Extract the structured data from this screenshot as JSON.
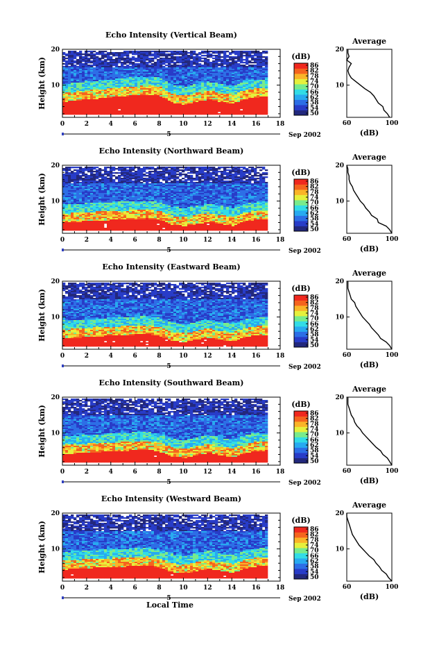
{
  "figure": {
    "xlabel": "Local Time",
    "date_label": "Sep 2002",
    "date_marker": "5"
  },
  "chart_data": [
    {
      "type": "heatmap",
      "title": "Echo Intensity (Vertical Beam)",
      "xlabel": "",
      "ylabel": "Height (km)",
      "x_ticks": [
        0,
        2,
        4,
        6,
        8,
        10,
        12,
        14,
        16,
        18
      ],
      "y_ticks": [
        10,
        20
      ],
      "xlim": [
        0,
        18
      ],
      "ylim": [
        1,
        20
      ],
      "data_end_x": 16.9,
      "colorbar": {
        "label": "(dB)",
        "ticks": [
          50,
          54,
          58,
          62,
          66,
          70,
          74,
          78,
          82,
          86
        ]
      },
      "layer_boundary_km": [
        [
          0,
          6.5
        ],
        [
          2,
          7.2
        ],
        [
          4,
          7.8
        ],
        [
          6,
          8.4
        ],
        [
          7,
          8.6
        ],
        [
          8,
          8.2
        ],
        [
          9,
          6.2
        ],
        [
          10,
          5.8
        ],
        [
          11,
          6.5
        ],
        [
          12,
          7.2
        ],
        [
          13,
          6.4
        ],
        [
          14,
          6.0
        ],
        [
          15,
          7.3
        ],
        [
          16,
          7.8
        ],
        [
          16.9,
          7.9
        ]
      ],
      "average_profile": {
        "title": "Average",
        "xlabel": "(dB)",
        "x_ticks": [
          60,
          100
        ],
        "y_ticks": [
          10,
          20
        ],
        "xlim": [
          60,
          100
        ],
        "ylim": [
          1,
          20
        ],
        "values_db": [
          [
            1,
            98
          ],
          [
            2,
            96
          ],
          [
            3,
            93
          ],
          [
            4,
            92
          ],
          [
            5,
            88
          ],
          [
            6,
            86
          ],
          [
            7,
            84
          ],
          [
            8,
            81
          ],
          [
            9,
            76
          ],
          [
            10,
            72
          ],
          [
            11,
            68
          ],
          [
            12,
            64
          ],
          [
            13,
            62
          ],
          [
            14,
            61
          ],
          [
            15,
            62
          ],
          [
            16,
            64
          ],
          [
            17,
            60
          ],
          [
            18,
            62
          ],
          [
            19,
            61
          ],
          [
            20,
            61
          ]
        ]
      }
    },
    {
      "type": "heatmap",
      "title": "Echo Intensity (Northward Beam)",
      "xlabel": "",
      "ylabel": "Height (km)",
      "x_ticks": [
        0,
        2,
        4,
        6,
        8,
        10,
        12,
        14,
        16,
        18
      ],
      "y_ticks": [
        10,
        20
      ],
      "xlim": [
        0,
        18
      ],
      "ylim": [
        1,
        20
      ],
      "data_end_x": 16.9,
      "colorbar": {
        "label": "(dB)",
        "ticks": [
          50,
          54,
          58,
          62,
          66,
          70,
          74,
          78,
          82,
          86
        ]
      },
      "layer_boundary_km": [
        [
          0,
          5.2
        ],
        [
          2,
          5.6
        ],
        [
          4,
          5.9
        ],
        [
          6,
          6.2
        ],
        [
          7,
          6.3
        ],
        [
          8,
          5.8
        ],
        [
          9,
          4.6
        ],
        [
          10,
          4.2
        ],
        [
          11,
          4.8
        ],
        [
          12,
          5.4
        ],
        [
          13,
          4.8
        ],
        [
          14,
          4.3
        ],
        [
          15,
          5.5
        ],
        [
          16,
          6.0
        ],
        [
          16.9,
          6.1
        ]
      ],
      "average_profile": {
        "title": "Average",
        "xlabel": "(dB)",
        "x_ticks": [
          60,
          100
        ],
        "y_ticks": [
          10,
          20
        ],
        "xlim": [
          60,
          100
        ],
        "ylim": [
          1,
          20
        ],
        "values_db": [
          [
            1,
            100
          ],
          [
            2,
            98
          ],
          [
            3,
            95
          ],
          [
            4,
            88
          ],
          [
            5,
            87
          ],
          [
            6,
            82
          ],
          [
            7,
            80
          ],
          [
            8,
            77
          ],
          [
            9,
            75
          ],
          [
            10,
            72
          ],
          [
            11,
            70
          ],
          [
            12,
            68
          ],
          [
            13,
            66
          ],
          [
            14,
            65
          ],
          [
            15,
            63
          ],
          [
            16,
            62
          ],
          [
            17,
            62
          ],
          [
            18,
            61
          ],
          [
            19,
            61
          ],
          [
            20,
            60
          ]
        ]
      }
    },
    {
      "type": "heatmap",
      "title": "Echo Intensity (Eastward Beam)",
      "xlabel": "",
      "ylabel": "Height (km)",
      "x_ticks": [
        0,
        2,
        4,
        6,
        8,
        10,
        12,
        14,
        16,
        18
      ],
      "y_ticks": [
        10,
        20
      ],
      "xlim": [
        0,
        18
      ],
      "ylim": [
        1,
        20
      ],
      "data_end_x": 16.9,
      "colorbar": {
        "label": "(dB)",
        "ticks": [
          50,
          54,
          58,
          62,
          66,
          70,
          74,
          78,
          82,
          86
        ]
      },
      "layer_boundary_km": [
        [
          0,
          5.2
        ],
        [
          2,
          5.6
        ],
        [
          4,
          6.0
        ],
        [
          6,
          6.3
        ],
        [
          7,
          6.4
        ],
        [
          8,
          5.8
        ],
        [
          9,
          4.5
        ],
        [
          10,
          4.1
        ],
        [
          11,
          4.9
        ],
        [
          12,
          5.5
        ],
        [
          13,
          4.8
        ],
        [
          14,
          4.4
        ],
        [
          15,
          5.6
        ],
        [
          16,
          6.1
        ],
        [
          16.9,
          6.2
        ]
      ],
      "average_profile": {
        "title": "Average",
        "xlabel": "(dB)",
        "x_ticks": [
          60,
          100
        ],
        "y_ticks": [
          10,
          20
        ],
        "xlim": [
          60,
          100
        ],
        "ylim": [
          1,
          20
        ],
        "values_db": [
          [
            1,
            100
          ],
          [
            2,
            98
          ],
          [
            3,
            95
          ],
          [
            4,
            90
          ],
          [
            5,
            88
          ],
          [
            6,
            85
          ],
          [
            7,
            82
          ],
          [
            8,
            80
          ],
          [
            9,
            77
          ],
          [
            10,
            74
          ],
          [
            11,
            72
          ],
          [
            12,
            70
          ],
          [
            13,
            68
          ],
          [
            14,
            67
          ],
          [
            15,
            64
          ],
          [
            16,
            63
          ],
          [
            17,
            62
          ],
          [
            18,
            61
          ],
          [
            19,
            61
          ],
          [
            20,
            61
          ]
        ]
      }
    },
    {
      "type": "heatmap",
      "title": "Echo Intensity (Southward Beam)",
      "xlabel": "",
      "ylabel": "Height (km)",
      "x_ticks": [
        0,
        2,
        4,
        6,
        8,
        10,
        12,
        14,
        16,
        18
      ],
      "y_ticks": [
        10,
        20
      ],
      "xlim": [
        0,
        18
      ],
      "ylim": [
        1,
        20
      ],
      "data_end_x": 16.9,
      "colorbar": {
        "label": "(dB)",
        "ticks": [
          50,
          54,
          58,
          62,
          66,
          70,
          74,
          78,
          82,
          86
        ]
      },
      "layer_boundary_km": [
        [
          0,
          5.3
        ],
        [
          2,
          5.7
        ],
        [
          4,
          6.0
        ],
        [
          6,
          6.4
        ],
        [
          7,
          6.5
        ],
        [
          8,
          5.9
        ],
        [
          9,
          4.6
        ],
        [
          10,
          4.2
        ],
        [
          11,
          5.0
        ],
        [
          12,
          5.6
        ],
        [
          13,
          4.9
        ],
        [
          14,
          4.4
        ],
        [
          15,
          5.6
        ],
        [
          16,
          6.2
        ],
        [
          16.9,
          6.3
        ]
      ],
      "average_profile": {
        "title": "Average",
        "xlabel": "(dB)",
        "x_ticks": [
          60,
          100
        ],
        "y_ticks": [
          10,
          20
        ],
        "xlim": [
          60,
          100
        ],
        "ylim": [
          1,
          20
        ],
        "values_db": [
          [
            1,
            100
          ],
          [
            2,
            98
          ],
          [
            3,
            96
          ],
          [
            4,
            92
          ],
          [
            5,
            90
          ],
          [
            6,
            86
          ],
          [
            7,
            83
          ],
          [
            8,
            80
          ],
          [
            9,
            77
          ],
          [
            10,
            74
          ],
          [
            11,
            72
          ],
          [
            12,
            69
          ],
          [
            13,
            67
          ],
          [
            14,
            66
          ],
          [
            15,
            64
          ],
          [
            16,
            63
          ],
          [
            17,
            62
          ],
          [
            18,
            61
          ],
          [
            19,
            61
          ],
          [
            20,
            61
          ]
        ]
      }
    },
    {
      "type": "heatmap",
      "title": "Echo Intensity (Westward Beam)",
      "xlabel": "Local Time",
      "ylabel": "Height (km)",
      "x_ticks": [
        0,
        2,
        4,
        6,
        8,
        10,
        12,
        14,
        16,
        18
      ],
      "y_ticks": [
        10,
        20
      ],
      "xlim": [
        0,
        18
      ],
      "ylim": [
        1,
        20
      ],
      "data_end_x": 16.9,
      "colorbar": {
        "label": "(dB)",
        "ticks": [
          50,
          54,
          58,
          62,
          66,
          70,
          74,
          78,
          82,
          86
        ]
      },
      "layer_boundary_km": [
        [
          0,
          5.4
        ],
        [
          2,
          5.8
        ],
        [
          4,
          6.1
        ],
        [
          6,
          6.4
        ],
        [
          7,
          6.5
        ],
        [
          8,
          5.9
        ],
        [
          9,
          4.7
        ],
        [
          10,
          4.3
        ],
        [
          11,
          5.0
        ],
        [
          12,
          5.7
        ],
        [
          13,
          5.0
        ],
        [
          14,
          4.5
        ],
        [
          15,
          5.7
        ],
        [
          16,
          6.3
        ],
        [
          16.9,
          6.4
        ]
      ],
      "average_profile": {
        "title": "Average",
        "xlabel": "(dB)",
        "x_ticks": [
          60,
          100
        ],
        "y_ticks": [
          10,
          20
        ],
        "xlim": [
          60,
          100
        ],
        "ylim": [
          1,
          20
        ],
        "values_db": [
          [
            1,
            100
          ],
          [
            2,
            97
          ],
          [
            3,
            95
          ],
          [
            4,
            91
          ],
          [
            5,
            89
          ],
          [
            6,
            86
          ],
          [
            7,
            84
          ],
          [
            8,
            80
          ],
          [
            9,
            77
          ],
          [
            10,
            74
          ],
          [
            11,
            71
          ],
          [
            12,
            69
          ],
          [
            13,
            67
          ],
          [
            14,
            65
          ],
          [
            15,
            64
          ],
          [
            16,
            63
          ],
          [
            17,
            62
          ],
          [
            18,
            61
          ],
          [
            19,
            60
          ],
          [
            20,
            60
          ]
        ]
      }
    }
  ]
}
